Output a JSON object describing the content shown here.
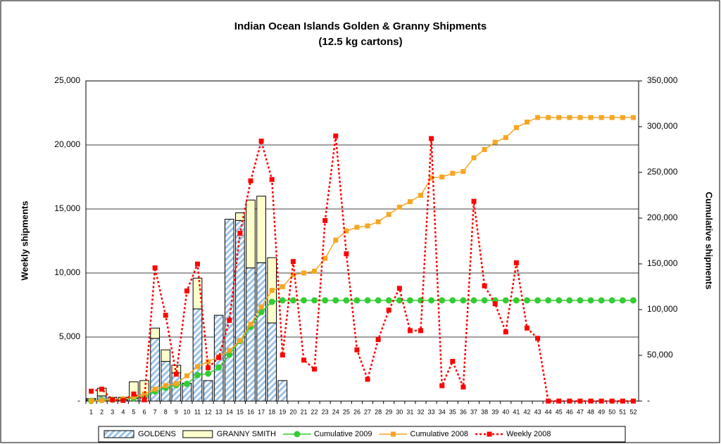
{
  "chart_data": {
    "type": "combo",
    "title": [
      "Indian Ocean Islands Golden & Granny Shipments",
      "(12.5 kg cartons)"
    ],
    "y_label": "Weekly shipments",
    "y2_label": "Cumulative shipments",
    "categories": [
      "1",
      "2",
      "3",
      "4",
      "5",
      "6",
      "7",
      "8",
      "9",
      "10",
      "11",
      "12",
      "13",
      "14",
      "15",
      "16",
      "17",
      "18",
      "19",
      "20",
      "21",
      "22",
      "23",
      "24",
      "25",
      "26",
      "27",
      "28",
      "29",
      "30",
      "31",
      "32",
      "33",
      "34",
      "35",
      "36",
      "37",
      "38",
      "39",
      "40",
      "41",
      "42",
      "43",
      "44",
      "45",
      "46",
      "47",
      "48",
      "49",
      "50",
      "51",
      "52"
    ],
    "ylim": [
      0,
      25000
    ],
    "yticks": [
      {
        "value": 0,
        "label": "-"
      },
      {
        "value": 5000,
        "label": "5,000"
      },
      {
        "value": 10000,
        "label": "10,000"
      },
      {
        "value": 15000,
        "label": "15,000"
      },
      {
        "value": 20000,
        "label": "20,000"
      },
      {
        "value": 25000,
        "label": "25,000"
      }
    ],
    "y2lim": [
      0,
      350000
    ],
    "y2ticks": [
      {
        "value": 0,
        "label": "-"
      },
      {
        "value": 50000,
        "label": "50,000"
      },
      {
        "value": 100000,
        "label": "100,000"
      },
      {
        "value": 150000,
        "label": "150,000"
      },
      {
        "value": 200000,
        "label": "200,000"
      },
      {
        "value": 250000,
        "label": "250,000"
      },
      {
        "value": 300000,
        "label": "300,000"
      },
      {
        "value": 350000,
        "label": "350,000"
      }
    ],
    "grid": true,
    "legend": "bottom",
    "series": [
      {
        "name": "GOLDENS",
        "type": "bar",
        "stacked": true,
        "color": "#9dc3e6",
        "values": [
          100,
          400,
          100,
          100,
          200,
          500,
          4900,
          3100,
          2200,
          1400,
          7200,
          1600,
          6700,
          14200,
          14100,
          10400,
          10800,
          6100,
          1600,
          null,
          null,
          null,
          null,
          null,
          null,
          null,
          null,
          null,
          null,
          null,
          null,
          null,
          null,
          null,
          null,
          null,
          null,
          null,
          null,
          null,
          null,
          null,
          null,
          null,
          null,
          null,
          null,
          null,
          null,
          null,
          null,
          null
        ]
      },
      {
        "name": "GRANNY SMITH",
        "type": "bar",
        "stacked": true,
        "color": "#ffffcc",
        "values": [
          100,
          600,
          200,
          200,
          1300,
          1100,
          800,
          900,
          600,
          0,
          2400,
          0,
          0,
          0,
          600,
          5300,
          5200,
          5100,
          0,
          null,
          null,
          null,
          null,
          null,
          null,
          null,
          null,
          null,
          null,
          null,
          null,
          null,
          null,
          null,
          null,
          null,
          null,
          null,
          null,
          null,
          null,
          null,
          null,
          null,
          null,
          null,
          null,
          null,
          null,
          null,
          null,
          null
        ]
      },
      {
        "name": "Cumulative 2009",
        "type": "line",
        "axis": "y2",
        "color": "#33cc33",
        "marker": "circle",
        "values": [
          200,
          1200,
          1500,
          1800,
          3300,
          4900,
          10600,
          14600,
          17400,
          18800,
          28400,
          30000,
          36700,
          50900,
          65600,
          81300,
          97300,
          108500,
          110100,
          110100,
          110100,
          110100,
          110100,
          110100,
          110100,
          110100,
          110100,
          110100,
          110100,
          110100,
          110100,
          110100,
          110100,
          110100,
          110100,
          110100,
          110100,
          110100,
          110100,
          110100,
          110100,
          110100,
          110100,
          110100,
          110100,
          110100,
          110100,
          110100,
          110100,
          110100,
          110100,
          110100
        ]
      },
      {
        "name": "Cumulative 2008",
        "type": "line",
        "axis": "y2",
        "color": "#f5a623",
        "marker": "square",
        "values": [
          200,
          800,
          1500,
          2300,
          4600,
          7700,
          13000,
          17000,
          19000,
          27700,
          37700,
          43000,
          48500,
          55400,
          66000,
          84000,
          103000,
          121000,
          125000,
          138000,
          140000,
          142000,
          156000,
          176000,
          186000,
          190000,
          191500,
          196000,
          204000,
          212000,
          218000,
          225000,
          244000,
          245000,
          249000,
          251000,
          266000,
          275000,
          283000,
          288000,
          299000,
          305000,
          310000,
          310000,
          310000,
          310000,
          310000,
          310000,
          310000,
          310000,
          310000,
          310000
        ]
      },
      {
        "name": "Weekly 2008",
        "type": "line",
        "color": "#ff0000",
        "marker": "square",
        "dashed": true,
        "values": [
          770,
          930,
          100,
          50,
          550,
          100,
          10400,
          6700,
          2100,
          8600,
          10700,
          2600,
          3400,
          6300,
          13100,
          17200,
          20300,
          17300,
          3600,
          10900,
          3200,
          2500,
          14100,
          20700,
          11500,
          4000,
          1700,
          4800,
          7100,
          8800,
          5500,
          5500,
          20500,
          1200,
          3100,
          1100,
          15600,
          9000,
          7600,
          5400,
          10800,
          5700,
          4900,
          0,
          0,
          0,
          0,
          0,
          0,
          0,
          0,
          0
        ]
      }
    ]
  }
}
